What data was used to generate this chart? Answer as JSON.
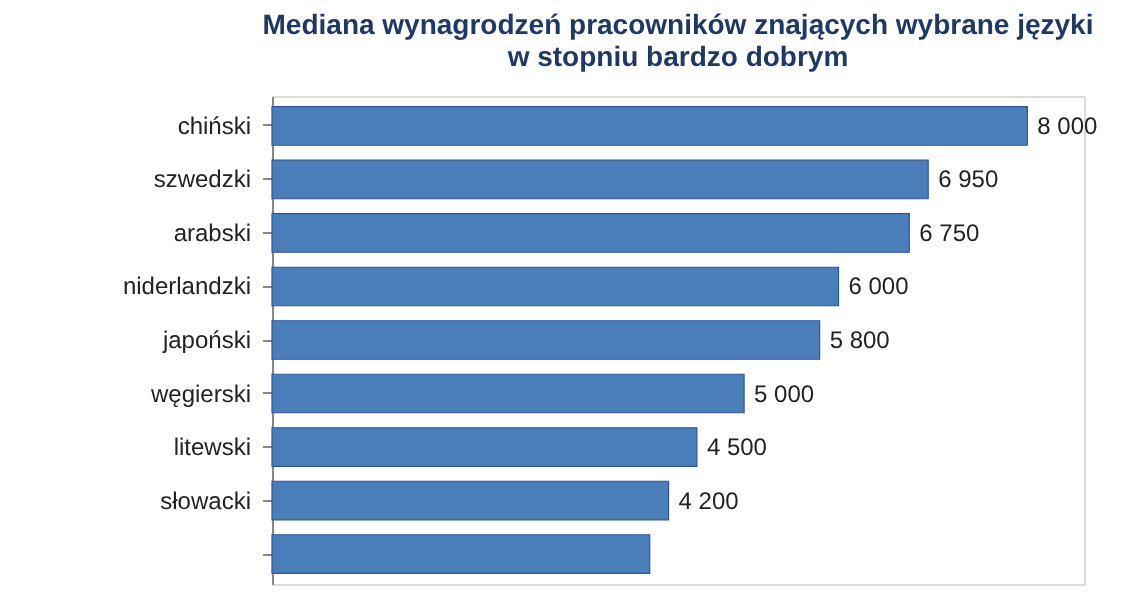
{
  "chart_data": {
    "type": "bar",
    "orientation": "horizontal",
    "title": [
      "Mediana wynagrodzeń pracowników znających wybrane języki",
      "w stopniu bardzo dobrym"
    ],
    "categories": [
      "chiński",
      "szwedzki",
      "arabski",
      "niderlandzki",
      "japoński",
      "węgierski",
      "litewski",
      "słowacki",
      null
    ],
    "values": [
      8000,
      6950,
      6750,
      6000,
      5800,
      5000,
      4500,
      4200,
      4000
    ],
    "value_labels": [
      "8 000",
      "6 950",
      "6 750",
      "6 000",
      "5 800",
      "5 000",
      "4 500",
      "4 200",
      null
    ],
    "color": "#4a7ebb",
    "xlim": [
      0,
      8600
    ],
    "tick_labels": "y"
  }
}
